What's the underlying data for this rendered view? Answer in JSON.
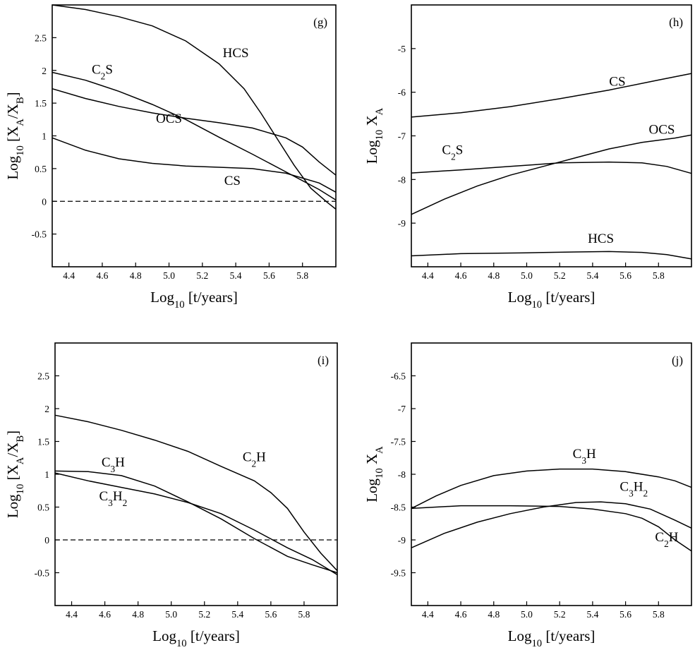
{
  "chart_data": [
    {
      "panel": "g",
      "type": "line",
      "panel_label": "(g)",
      "xlabel": {
        "main": "Log",
        "sub": "10",
        "rest": " [t/years]"
      },
      "ylabel": {
        "main": "Log",
        "sub": "10",
        "rest": " [X",
        "sub2": "A",
        "rest2": "/X",
        "sub3": "B",
        "rest3": "]"
      },
      "xlim": [
        4.3,
        6.0
      ],
      "ylim": [
        -1.0,
        3.0
      ],
      "xticks": [
        4.4,
        4.6,
        4.8,
        5.0,
        5.2,
        5.4,
        5.6,
        5.8
      ],
      "xtick_labels": [
        "4.4",
        "4.6",
        "4.8",
        "5.0",
        "5.2",
        "5.4",
        "5.6",
        "5.8"
      ],
      "yticks": [
        -0.5,
        0,
        0.5,
        1,
        1.5,
        2,
        2.5
      ],
      "ytick_labels": [
        "-0.5",
        "0",
        "0.5",
        "1",
        "1.5",
        "2",
        "2.5"
      ],
      "reference_line": 0,
      "series": [
        {
          "name": "HCS",
          "x": [
            4.3,
            4.5,
            4.7,
            4.9,
            5.1,
            5.3,
            5.45,
            5.55,
            5.65,
            5.75,
            5.85,
            5.95,
            6.0
          ],
          "y": [
            3.0,
            2.93,
            2.82,
            2.68,
            2.45,
            2.1,
            1.72,
            1.35,
            0.95,
            0.55,
            0.2,
            -0.02,
            -0.12
          ]
        },
        {
          "name": "C2S",
          "x": [
            4.3,
            4.5,
            4.7,
            4.9,
            5.1,
            5.3,
            5.5,
            5.7,
            5.9,
            6.0
          ],
          "y": [
            1.97,
            1.85,
            1.68,
            1.48,
            1.25,
            0.98,
            0.72,
            0.45,
            0.18,
            0.02
          ]
        },
        {
          "name": "OCS",
          "x": [
            4.3,
            4.5,
            4.7,
            4.9,
            5.1,
            5.3,
            5.5,
            5.7,
            5.8,
            5.9,
            6.0
          ],
          "y": [
            1.72,
            1.57,
            1.45,
            1.35,
            1.27,
            1.2,
            1.12,
            0.97,
            0.83,
            0.6,
            0.4
          ]
        },
        {
          "name": "CS",
          "x": [
            4.3,
            4.5,
            4.7,
            4.9,
            5.1,
            5.3,
            5.5,
            5.7,
            5.9,
            6.0
          ],
          "y": [
            0.97,
            0.78,
            0.65,
            0.58,
            0.54,
            0.52,
            0.5,
            0.43,
            0.28,
            0.14
          ]
        }
      ],
      "labels": [
        {
          "main": "HCS",
          "x": 5.4,
          "y": 2.2
        },
        {
          "main": "C",
          "sub": "2",
          "rest": "S",
          "x": 4.6,
          "y": 1.95
        },
        {
          "main": "OCS",
          "x": 5.0,
          "y": 1.2
        },
        {
          "main": "CS",
          "x": 5.38,
          "y": 0.25
        }
      ]
    },
    {
      "panel": "h",
      "type": "line",
      "panel_label": "(h)",
      "xlabel": {
        "main": "Log",
        "sub": "10",
        "rest": " [t/years]"
      },
      "ylabel": {
        "main": "Log",
        "sub": "10",
        "rest": " X",
        "sub2": "A"
      },
      "xlim": [
        4.3,
        6.0
      ],
      "ylim": [
        -10.0,
        -4.0
      ],
      "xticks": [
        4.4,
        4.6,
        4.8,
        5.0,
        5.2,
        5.4,
        5.6,
        5.8
      ],
      "xtick_labels": [
        "4.4",
        "4.6",
        "4.8",
        "5.0",
        "5.2",
        "5.4",
        "5.6",
        "5.8"
      ],
      "yticks": [
        -9,
        -8,
        -7,
        -6,
        -5
      ],
      "ytick_labels": [
        "-9",
        "-8",
        "-7",
        "-6",
        "-5"
      ],
      "series": [
        {
          "name": "CS",
          "x": [
            4.3,
            4.6,
            4.9,
            5.2,
            5.5,
            5.8,
            6.0
          ],
          "y": [
            -6.57,
            -6.47,
            -6.33,
            -6.15,
            -5.95,
            -5.72,
            -5.57
          ]
        },
        {
          "name": "OCS",
          "x": [
            4.3,
            4.5,
            4.7,
            4.9,
            5.1,
            5.3,
            5.5,
            5.7,
            5.9,
            6.0
          ],
          "y": [
            -8.8,
            -8.45,
            -8.15,
            -7.9,
            -7.7,
            -7.5,
            -7.3,
            -7.15,
            -7.05,
            -6.98
          ]
        },
        {
          "name": "C2S",
          "x": [
            4.3,
            4.6,
            4.9,
            5.2,
            5.5,
            5.7,
            5.85,
            6.0
          ],
          "y": [
            -7.85,
            -7.78,
            -7.7,
            -7.62,
            -7.6,
            -7.62,
            -7.7,
            -7.86
          ]
        },
        {
          "name": "HCS",
          "x": [
            4.3,
            4.6,
            5.0,
            5.3,
            5.5,
            5.7,
            5.85,
            6.0
          ],
          "y": [
            -9.75,
            -9.7,
            -9.68,
            -9.66,
            -9.65,
            -9.67,
            -9.72,
            -9.82
          ]
        }
      ],
      "labels": [
        {
          "main": "CS",
          "x": 5.55,
          "y": -5.85
        },
        {
          "main": "OCS",
          "x": 5.82,
          "y": -6.95
        },
        {
          "main": "C",
          "sub": "2",
          "rest": "S",
          "x": 4.55,
          "y": -7.42
        },
        {
          "main": "HCS",
          "x": 5.45,
          "y": -9.45
        }
      ]
    },
    {
      "panel": "i",
      "type": "line",
      "panel_label": "(i)",
      "xlabel": {
        "main": "Log",
        "sub": "10",
        "rest": " [t/years]"
      },
      "ylabel": {
        "main": "Log",
        "sub": "10",
        "rest": " [X",
        "sub2": "A",
        "rest2": "/X",
        "sub3": "B",
        "rest3": "]"
      },
      "xlim": [
        4.3,
        6.0
      ],
      "ylim": [
        -1.0,
        3.0
      ],
      "xticks": [
        4.4,
        4.6,
        4.8,
        5.0,
        5.2,
        5.4,
        5.6,
        5.8
      ],
      "xtick_labels": [
        "4.4",
        "4.6",
        "4.8",
        "5.0",
        "5.2",
        "5.4",
        "5.6",
        "5.8"
      ],
      "yticks": [
        -0.5,
        0,
        0.5,
        1,
        1.5,
        2,
        2.5
      ],
      "ytick_labels": [
        "-0.5",
        "0",
        "0.5",
        "1",
        "1.5",
        "2",
        "2.5"
      ],
      "reference_line": 0,
      "series": [
        {
          "name": "C2H",
          "x": [
            4.3,
            4.5,
            4.7,
            4.9,
            5.1,
            5.3,
            5.5,
            5.6,
            5.7,
            5.8,
            5.9,
            6.0
          ],
          "y": [
            1.9,
            1.8,
            1.67,
            1.52,
            1.35,
            1.12,
            0.9,
            0.72,
            0.48,
            0.12,
            -0.2,
            -0.47
          ]
        },
        {
          "name": "C3H",
          "x": [
            4.3,
            4.5,
            4.7,
            4.9,
            5.1,
            5.3,
            5.5,
            5.7,
            5.85,
            6.0
          ],
          "y": [
            1.05,
            1.04,
            0.98,
            0.82,
            0.58,
            0.32,
            0.02,
            -0.25,
            -0.38,
            -0.5
          ]
        },
        {
          "name": "C3H2",
          "x": [
            4.3,
            4.5,
            4.7,
            4.9,
            5.1,
            5.3,
            5.5,
            5.7,
            5.85,
            6.0
          ],
          "y": [
            1.02,
            0.9,
            0.8,
            0.7,
            0.57,
            0.4,
            0.15,
            -0.12,
            -0.3,
            -0.53
          ]
        }
      ],
      "labels": [
        {
          "main": "C",
          "sub": "3",
          "rest": "H",
          "x": 4.65,
          "y": 1.12
        },
        {
          "main": "C",
          "sub": "3",
          "rest": "H",
          "sub2": "2",
          "x": 4.65,
          "y": 0.6
        },
        {
          "main": "C",
          "sub": "2",
          "rest": "H",
          "x": 5.5,
          "y": 1.2
        }
      ]
    },
    {
      "panel": "j",
      "type": "line",
      "panel_label": "(j)",
      "xlabel": {
        "main": "Log",
        "sub": "10",
        "rest": " [t/years]"
      },
      "ylabel": {
        "main": "Log",
        "sub": "10",
        "rest": " X",
        "sub2": "A"
      },
      "xlim": [
        4.3,
        6.0
      ],
      "ylim": [
        -10.0,
        -6.0
      ],
      "xticks": [
        4.4,
        4.6,
        4.8,
        5.0,
        5.2,
        5.4,
        5.6,
        5.8
      ],
      "xtick_labels": [
        "4.4",
        "4.6",
        "4.8",
        "5.0",
        "5.2",
        "5.4",
        "5.6",
        "5.8"
      ],
      "yticks": [
        -9.5,
        -9,
        -8.5,
        -8,
        -7.5,
        -7,
        -6.5
      ],
      "ytick_labels": [
        "-9.5",
        "-9",
        "-8.5",
        "-8",
        "-7.5",
        "-7",
        "-6.5"
      ],
      "series": [
        {
          "name": "C3H",
          "x": [
            4.3,
            4.45,
            4.6,
            4.8,
            5.0,
            5.2,
            5.4,
            5.6,
            5.8,
            5.9,
            6.0
          ],
          "y": [
            -8.52,
            -8.33,
            -8.17,
            -8.02,
            -7.95,
            -7.92,
            -7.92,
            -7.96,
            -8.04,
            -8.1,
            -8.2
          ]
        },
        {
          "name": "C3H2",
          "x": [
            4.3,
            4.5,
            4.7,
            4.9,
            5.1,
            5.3,
            5.45,
            5.6,
            5.75,
            5.9,
            6.0
          ],
          "y": [
            -9.12,
            -8.9,
            -8.73,
            -8.6,
            -8.5,
            -8.43,
            -8.42,
            -8.45,
            -8.53,
            -8.7,
            -8.82
          ]
        },
        {
          "name": "C2H",
          "x": [
            4.3,
            4.6,
            4.9,
            5.2,
            5.4,
            5.6,
            5.7,
            5.8,
            5.9,
            6.0
          ],
          "y": [
            -8.52,
            -8.48,
            -8.48,
            -8.49,
            -8.53,
            -8.6,
            -8.67,
            -8.8,
            -9.0,
            -9.17
          ]
        }
      ],
      "labels": [
        {
          "main": "C",
          "sub": "3",
          "rest": "H",
          "x": 5.35,
          "y": -7.75
        },
        {
          "main": "C",
          "sub": "3",
          "rest": "H",
          "sub2": "2",
          "x": 5.65,
          "y": -8.25
        },
        {
          "main": "C",
          "sub": "2",
          "rest": "H",
          "x": 5.85,
          "y": -9.02
        }
      ]
    }
  ]
}
